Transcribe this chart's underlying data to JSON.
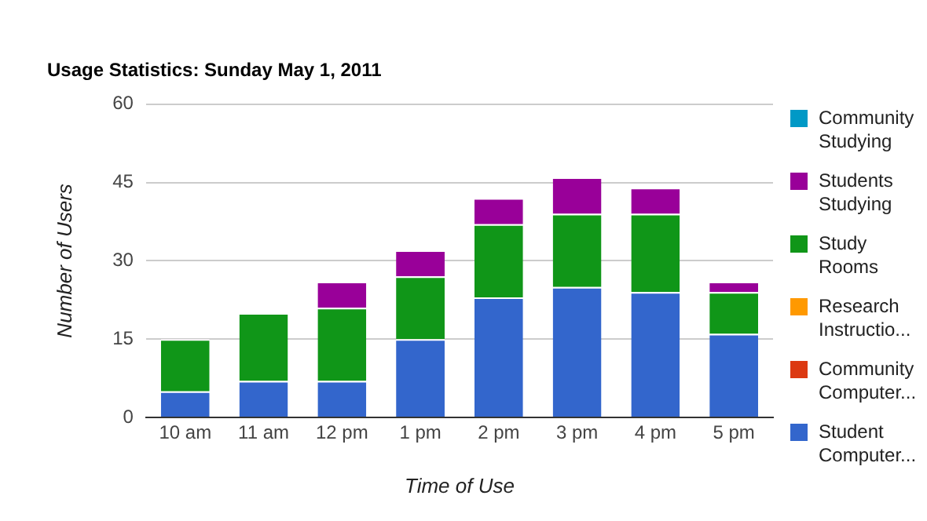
{
  "chart_data": {
    "type": "bar",
    "stacked": true,
    "title": "Usage Statistics: Sunday May 1, 2011",
    "xlabel": "Time of Use",
    "ylabel": "Number of Users",
    "categories": [
      "10 am",
      "11 am",
      "12 pm",
      "1 pm",
      "2 pm",
      "3 pm",
      "4 pm",
      "5 pm"
    ],
    "series": [
      {
        "name": "Student Computer...",
        "color": "#3366cc",
        "values": [
          5,
          7,
          7,
          15,
          23,
          25,
          24,
          16
        ]
      },
      {
        "name": "Community Computer...",
        "color": "#dc3912",
        "values": [
          0,
          0,
          0,
          0,
          0,
          0,
          0,
          0
        ]
      },
      {
        "name": "Research Instructio...",
        "color": "#ff9900",
        "values": [
          0,
          0,
          0,
          0,
          0,
          0,
          0,
          0
        ]
      },
      {
        "name": "Study Rooms",
        "color": "#109618",
        "values": [
          10,
          13,
          14,
          12,
          14,
          14,
          15,
          8
        ]
      },
      {
        "name": "Students Studying",
        "color": "#990099",
        "values": [
          0,
          0,
          5,
          5,
          5,
          7,
          5,
          2
        ]
      },
      {
        "name": "Community Studying",
        "color": "#0099c6",
        "values": [
          0,
          0,
          0,
          0,
          0,
          0,
          0,
          0
        ]
      }
    ],
    "ylim": [
      0,
      60
    ],
    "yticks": [
      0,
      15,
      30,
      45,
      60
    ],
    "grid": "y",
    "legend": "right"
  }
}
